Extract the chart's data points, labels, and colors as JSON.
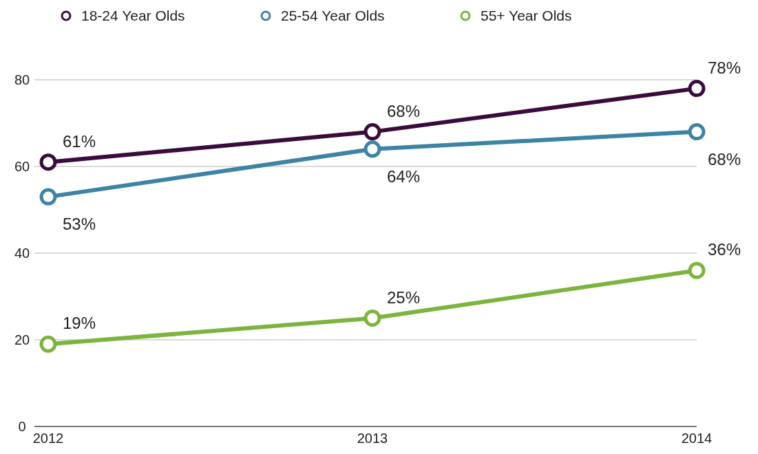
{
  "chart_data": {
    "type": "line",
    "categories": [
      "2012",
      "2013",
      "2014"
    ],
    "series": [
      {
        "name": "18-24 Year Olds",
        "color": "#3b0b3d",
        "values": [
          61,
          68,
          78
        ],
        "value_labels": [
          "61%",
          "68%",
          "78%"
        ]
      },
      {
        "name": "25-54 Year Olds",
        "color": "#3d83a5",
        "values": [
          53,
          64,
          68
        ],
        "value_labels": [
          "53%",
          "64%",
          "68%"
        ]
      },
      {
        "name": "55+ Year Olds",
        "color": "#7db43e",
        "values": [
          19,
          25,
          36
        ],
        "value_labels": [
          "19%",
          "25%",
          "36%"
        ]
      }
    ],
    "ylim": [
      0,
      80
    ],
    "yticks": [
      0,
      20,
      40,
      60,
      80
    ],
    "grid": "y",
    "legend": "top",
    "marker": "circle",
    "line_style": "solid"
  }
}
